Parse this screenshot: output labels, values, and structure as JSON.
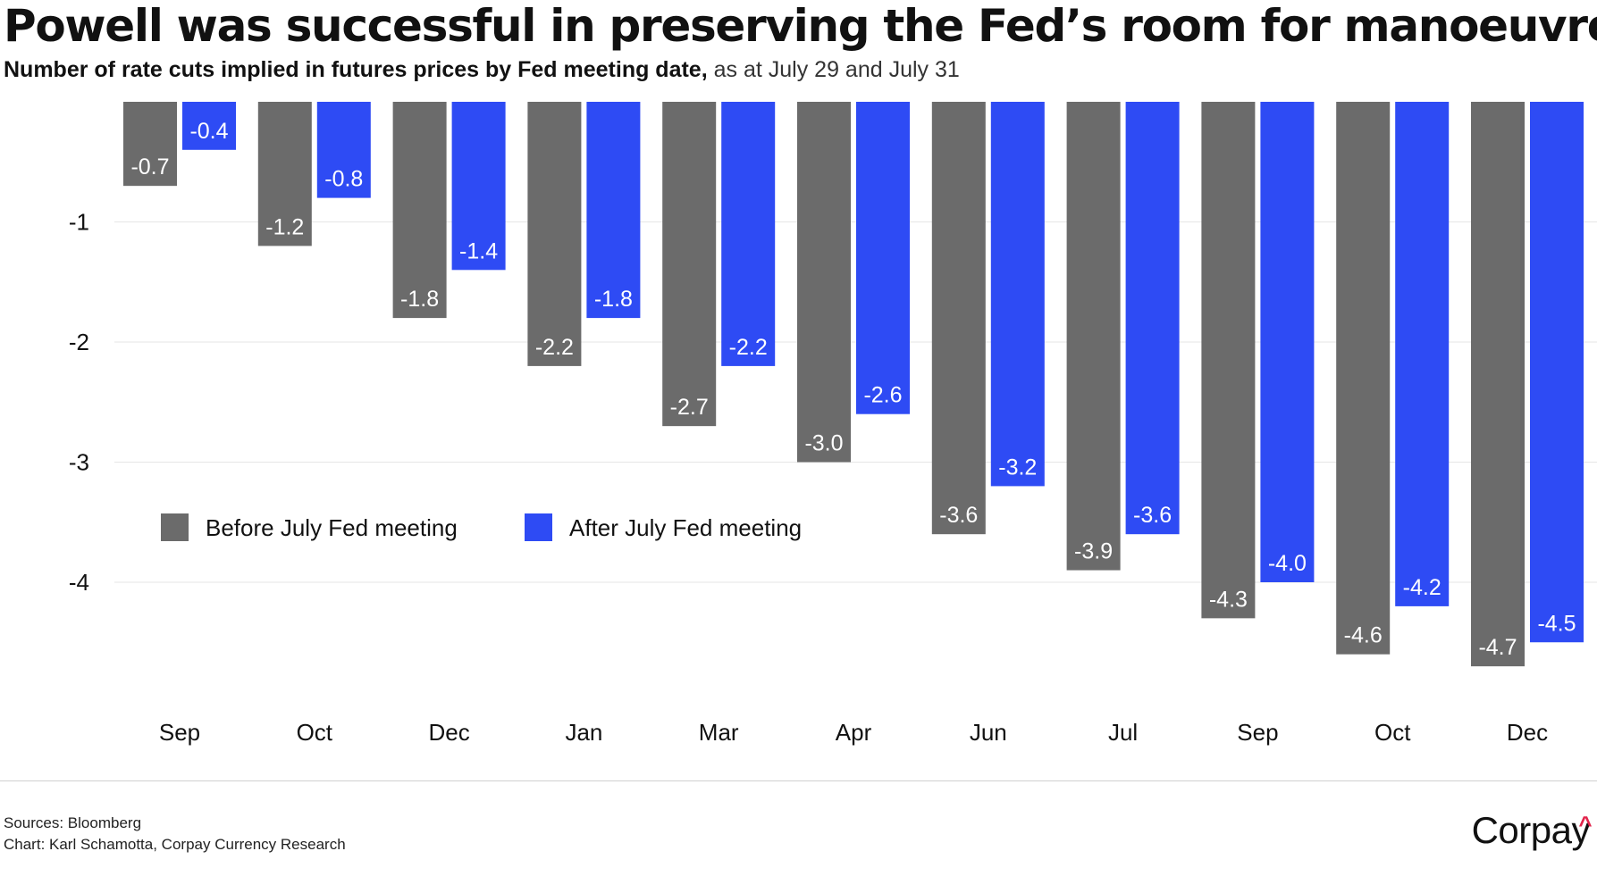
{
  "header": {
    "title": "Powell was successful in preserving the Fed’s room for manoeuvre.",
    "subtitle_bold": "Number of rate cuts implied in futures prices by Fed meeting date,",
    "subtitle_light": " as at July 29 and July 31"
  },
  "chart_data": {
    "type": "bar",
    "categories": [
      "Sep",
      "Oct",
      "Dec",
      "Jan",
      "Mar",
      "Apr",
      "Jun",
      "Jul",
      "Sep",
      "Oct",
      "Dec"
    ],
    "series": [
      {
        "name": "Before July Fed meeting",
        "color": "#6b6b6b",
        "values": [
          -0.7,
          -1.2,
          -1.8,
          -2.2,
          -2.7,
          -3.0,
          -3.6,
          -3.9,
          -4.3,
          -4.6,
          -4.7
        ],
        "labels": [
          "-0.7",
          "-1.2",
          "-1.8",
          "-2.2",
          "-2.7",
          "-3.0",
          "-3.6",
          "-3.9",
          "-4.3",
          "-4.6",
          "-4.7"
        ]
      },
      {
        "name": "After July Fed meeting",
        "color": "#2e4bf4",
        "values": [
          -0.4,
          -0.8,
          -1.4,
          -1.8,
          -2.2,
          -2.6,
          -3.2,
          -3.6,
          -4.0,
          -4.2,
          -4.5
        ],
        "labels": [
          "-0.4",
          "-0.8",
          "-1.4",
          "-1.8",
          "-2.2",
          "-2.6",
          "-3.2",
          "-3.6",
          "-4.0",
          "-4.2",
          "-4.5"
        ]
      }
    ],
    "ylim": [
      -4.9,
      0
    ],
    "yticks": [
      -1,
      -2,
      -3,
      -4
    ],
    "ytick_labels": [
      "-1",
      "-2",
      "-3",
      "-4"
    ],
    "grid": true,
    "legend_position": "middle-left",
    "xlabel": "",
    "ylabel": ""
  },
  "footer": {
    "sources": "Sources: Bloomberg",
    "credit": "Chart: Karl Schamotta, Corpay Currency Research",
    "logo_text": "Corpay",
    "logo_mark": "^"
  }
}
